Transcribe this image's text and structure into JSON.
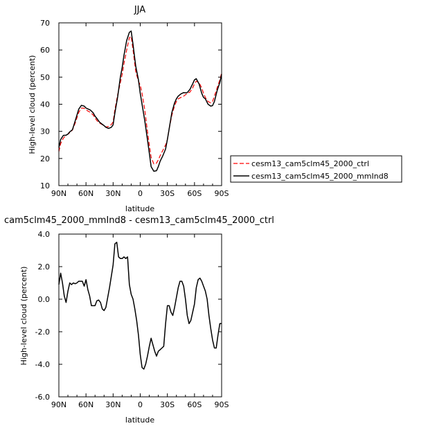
{
  "chart_data": [
    {
      "type": "line",
      "title": "JJA",
      "xlabel": "latitude",
      "ylabel": "High-level cloud (percent)",
      "xlim": [
        90,
        -90
      ],
      "ylim": [
        10,
        70
      ],
      "x_tick_values": [
        90,
        60,
        30,
        0,
        -30,
        -60,
        -90
      ],
      "x_tick_labels": [
        "90N",
        "60N",
        "30N",
        "0",
        "30S",
        "60S",
        "90S"
      ],
      "y_tick_values": [
        10,
        20,
        30,
        40,
        50,
        60,
        70
      ],
      "y_tick_labels": [
        "10",
        "20",
        "30",
        "40",
        "50",
        "60",
        "70"
      ],
      "legend_position": "right",
      "series": [
        {
          "name": "cesm13_cam5clm45_2000_ctrl",
          "color": "#ff0000",
          "dash": "dashed",
          "x": [
            90,
            88,
            85,
            82,
            80,
            78,
            75,
            72,
            70,
            68,
            65,
            62,
            60,
            58,
            55,
            52,
            50,
            48,
            45,
            42,
            40,
            38,
            35,
            32,
            30,
            28,
            25,
            22,
            20,
            18,
            15,
            12,
            10,
            8,
            5,
            2,
            0,
            -2,
            -5,
            -8,
            -10,
            -12,
            -15,
            -18,
            -20,
            -22,
            -25,
            -28,
            -30,
            -32,
            -35,
            -38,
            -40,
            -42,
            -45,
            -48,
            -50,
            -52,
            -55,
            -58,
            -60,
            -62,
            -65,
            -68,
            -70,
            -72,
            -75,
            -78,
            -80,
            -82,
            -85,
            -88,
            -90
          ],
          "y": [
            22.5,
            25.5,
            27.5,
            28.5,
            29.0,
            29.5,
            30.5,
            33.0,
            35.0,
            37.0,
            38.6,
            38.5,
            38.0,
            37.5,
            37.0,
            36.0,
            35.0,
            34.0,
            33.0,
            32.5,
            32.0,
            31.6,
            31.8,
            32.5,
            33.5,
            38.0,
            43.5,
            48.0,
            51.0,
            55.0,
            60.0,
            64.5,
            65.0,
            60.0,
            52.0,
            48.5,
            47.0,
            44.0,
            38.0,
            30.0,
            25.0,
            20.5,
            18.0,
            18.3,
            19.5,
            21.0,
            23.0,
            25.0,
            27.0,
            31.0,
            36.0,
            39.5,
            41.0,
            42.0,
            42.5,
            43.0,
            43.5,
            44.0,
            44.5,
            46.0,
            47.5,
            48.5,
            48.0,
            46.0,
            44.0,
            42.5,
            41.0,
            40.5,
            41.0,
            43.0,
            46.0,
            49.0,
            51.5
          ]
        },
        {
          "name": "cesm13_cam5clm45_2000_mmInd8",
          "color": "#000000",
          "dash": "solid",
          "x": [
            90,
            88,
            85,
            82,
            80,
            78,
            75,
            72,
            70,
            68,
            65,
            62,
            60,
            58,
            55,
            52,
            50,
            48,
            45,
            42,
            40,
            38,
            35,
            32,
            30,
            28,
            25,
            22,
            20,
            18,
            15,
            12,
            10,
            8,
            5,
            2,
            0,
            -2,
            -5,
            -8,
            -10,
            -12,
            -15,
            -18,
            -20,
            -22,
            -25,
            -28,
            -30,
            -32,
            -35,
            -38,
            -40,
            -42,
            -45,
            -48,
            -50,
            -52,
            -55,
            -58,
            -60,
            -62,
            -65,
            -68,
            -70,
            -72,
            -75,
            -78,
            -80,
            -82,
            -85,
            -88,
            -90
          ],
          "y": [
            24.0,
            27.0,
            28.5,
            28.6,
            29.0,
            29.8,
            30.6,
            33.8,
            36.0,
            38.2,
            39.6,
            39.3,
            38.6,
            38.3,
            37.8,
            36.8,
            35.6,
            34.8,
            33.4,
            32.6,
            32.1,
            31.5,
            31.1,
            31.5,
            32.4,
            36.8,
            42.7,
            50.0,
            53.5,
            58.0,
            63.5,
            66.5,
            67.0,
            62.0,
            54.0,
            49.0,
            44.0,
            40.0,
            34.0,
            27.0,
            22.0,
            17.0,
            15.3,
            15.5,
            17.0,
            19.0,
            21.0,
            23.5,
            27.0,
            31.0,
            37.0,
            40.5,
            42.0,
            43.0,
            43.8,
            44.3,
            44.2,
            44.3,
            45.5,
            47.5,
            49.0,
            49.4,
            47.5,
            44.0,
            42.5,
            42.0,
            40.0,
            39.3,
            39.5,
            41.0,
            45.0,
            48.0,
            51.0
          ]
        }
      ]
    },
    {
      "type": "line",
      "title": "cam5clm45_2000_mmInd8 - cesm13_cam5clm45_2000_ctrl",
      "xlabel": "latitude",
      "ylabel": "High-level cloud (percent)",
      "xlim": [
        90,
        -90
      ],
      "ylim": [
        -6.0,
        4.0
      ],
      "x_tick_values": [
        90,
        60,
        30,
        0,
        -30,
        -60,
        -90
      ],
      "x_tick_labels": [
        "90N",
        "60N",
        "30N",
        "0",
        "30S",
        "60S",
        "90S"
      ],
      "y_tick_values": [
        4.0,
        2.0,
        0.0,
        -2.0,
        -4.0,
        -6.0
      ],
      "y_tick_labels": [
        "4.0",
        "2.0",
        "0.0",
        "-2.0",
        "-4.0",
        "-6.0"
      ],
      "series": [
        {
          "color": "#000000",
          "x": [
            90,
            88,
            86,
            84,
            82,
            80,
            78,
            76,
            74,
            72,
            70,
            68,
            66,
            64,
            62,
            60,
            58,
            56,
            54,
            52,
            50,
            48,
            46,
            44,
            42,
            40,
            38,
            36,
            34,
            32,
            30,
            28,
            26,
            24,
            22,
            20,
            18,
            16,
            14,
            12,
            10,
            8,
            6,
            4,
            2,
            0,
            -2,
            -4,
            -6,
            -8,
            -10,
            -12,
            -14,
            -16,
            -18,
            -20,
            -22,
            -24,
            -26,
            -28,
            -30,
            -32,
            -34,
            -36,
            -38,
            -40,
            -42,
            -44,
            -46,
            -48,
            -50,
            -52,
            -54,
            -56,
            -58,
            -60,
            -62,
            -64,
            -66,
            -68,
            -70,
            -72,
            -74,
            -76,
            -78,
            -80,
            -82,
            -84,
            -86,
            -88,
            -90
          ],
          "y": [
            0.9,
            1.6,
            1.0,
            0.2,
            -0.2,
            0.5,
            1.0,
            0.9,
            1.0,
            0.95,
            1.0,
            1.1,
            1.1,
            1.1,
            0.8,
            1.2,
            0.6,
            0.2,
            -0.4,
            -0.4,
            -0.4,
            -0.1,
            -0.05,
            -0.2,
            -0.6,
            -0.7,
            -0.5,
            0.1,
            0.7,
            1.4,
            2.1,
            3.4,
            3.5,
            2.6,
            2.5,
            2.5,
            2.6,
            2.5,
            2.6,
            0.9,
            0.3,
            0.0,
            -0.6,
            -1.3,
            -2.2,
            -3.4,
            -4.2,
            -4.3,
            -4.0,
            -3.5,
            -2.9,
            -2.4,
            -2.8,
            -3.2,
            -3.5,
            -3.2,
            -3.1,
            -3.0,
            -2.9,
            -1.5,
            -0.4,
            -0.4,
            -0.8,
            -1.0,
            -0.5,
            0.1,
            0.7,
            1.1,
            1.1,
            0.8,
            0.0,
            -1.0,
            -1.5,
            -1.3,
            -0.8,
            -0.3,
            0.7,
            1.2,
            1.3,
            1.1,
            0.8,
            0.5,
            0.0,
            -1.0,
            -1.8,
            -2.5,
            -3.0,
            -3.0,
            -2.2,
            -1.5,
            -1.5
          ]
        }
      ]
    }
  ],
  "legend_items": [
    {
      "label": "cesm13_cam5clm45_2000_ctrl",
      "color": "#ff0000",
      "dash": "dashed"
    },
    {
      "label": "cesm13_cam5clm45_2000_mmInd8",
      "color": "#000000",
      "dash": "solid"
    }
  ]
}
